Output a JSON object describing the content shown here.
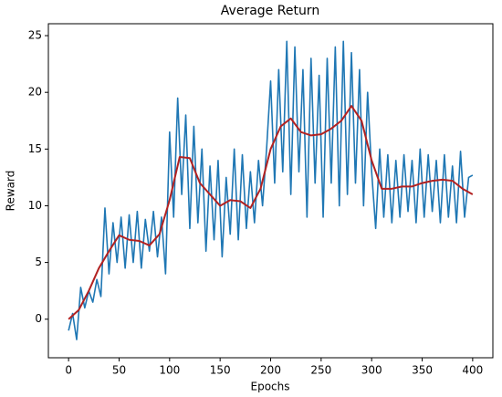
{
  "chart_data": {
    "type": "line",
    "title": "Average Return",
    "x_label": "Epochs",
    "y_label": "Reward",
    "xlim": [
      -20,
      420
    ],
    "ylim": [
      -3.4,
      26.05
    ],
    "xticks": [
      0,
      50,
      100,
      150,
      200,
      250,
      300,
      350,
      400
    ],
    "yticks": [
      0,
      5,
      10,
      15,
      20,
      25
    ],
    "grid": false,
    "series": [
      {
        "color": "#1f77b4",
        "width": 1.6,
        "x": [
          0,
          4,
          8,
          12,
          16,
          20,
          24,
          28,
          32,
          36,
          40,
          44,
          48,
          52,
          56,
          60,
          64,
          68,
          72,
          76,
          80,
          84,
          88,
          92,
          96,
          100,
          104,
          108,
          112,
          116,
          120,
          124,
          128,
          132,
          136,
          140,
          144,
          148,
          152,
          156,
          160,
          164,
          168,
          172,
          176,
          180,
          184,
          188,
          192,
          196,
          200,
          204,
          208,
          212,
          216,
          220,
          224,
          228,
          232,
          236,
          240,
          244,
          248,
          252,
          256,
          260,
          264,
          268,
          272,
          276,
          280,
          284,
          288,
          292,
          296,
          300,
          304,
          308,
          312,
          316,
          320,
          324,
          328,
          332,
          336,
          340,
          344,
          348,
          352,
          356,
          360,
          364,
          368,
          372,
          376,
          380,
          384,
          388,
          392,
          396,
          400
        ],
        "values": [
          -1,
          0.5,
          -1.8,
          2.8,
          1,
          2.5,
          1.5,
          3.5,
          2,
          9.8,
          4,
          8.5,
          5,
          9,
          4.5,
          9.2,
          5,
          9.5,
          4.5,
          8.8,
          6,
          9.5,
          5.5,
          9,
          4,
          16.5,
          9,
          19.5,
          11,
          18,
          8,
          17,
          8.5,
          15,
          6,
          13.5,
          7,
          14,
          5.5,
          12.5,
          7.5,
          15,
          7,
          14.5,
          8,
          13,
          8.5,
          14,
          10,
          15,
          21,
          12,
          22,
          13,
          24.5,
          11,
          24,
          13,
          22,
          9,
          23,
          12,
          21.5,
          9,
          23,
          12,
          24,
          10,
          24.5,
          11,
          23.5,
          12,
          22,
          10,
          20,
          13,
          8,
          15,
          9,
          14.5,
          8.5,
          14,
          9,
          14.5,
          9.5,
          14,
          8.5,
          15,
          9,
          14.5,
          9.5,
          14,
          8.5,
          14.5,
          9,
          13.5,
          8.5,
          14.8,
          9,
          12.5,
          12.7
        ]
      },
      {
        "color": "#b22222",
        "width": 2,
        "x": [
          0,
          10,
          20,
          30,
          40,
          50,
          60,
          70,
          80,
          90,
          100,
          110,
          120,
          130,
          140,
          150,
          160,
          170,
          180,
          190,
          200,
          210,
          220,
          230,
          240,
          250,
          260,
          270,
          280,
          290,
          300,
          310,
          320,
          330,
          340,
          350,
          360,
          370,
          380,
          390,
          400
        ],
        "values": [
          0,
          0.8,
          2.5,
          4.5,
          6,
          7.4,
          7,
          6.9,
          6.5,
          7.5,
          10.5,
          14.3,
          14.2,
          12,
          11,
          10,
          10.5,
          10.4,
          9.8,
          11.5,
          15,
          17,
          17.7,
          16.5,
          16.2,
          16.3,
          16.8,
          17.5,
          18.8,
          17.5,
          14,
          11.5,
          11.5,
          11.7,
          11.7,
          12,
          12.2,
          12.3,
          12.2,
          11.5,
          11
        ]
      }
    ]
  }
}
